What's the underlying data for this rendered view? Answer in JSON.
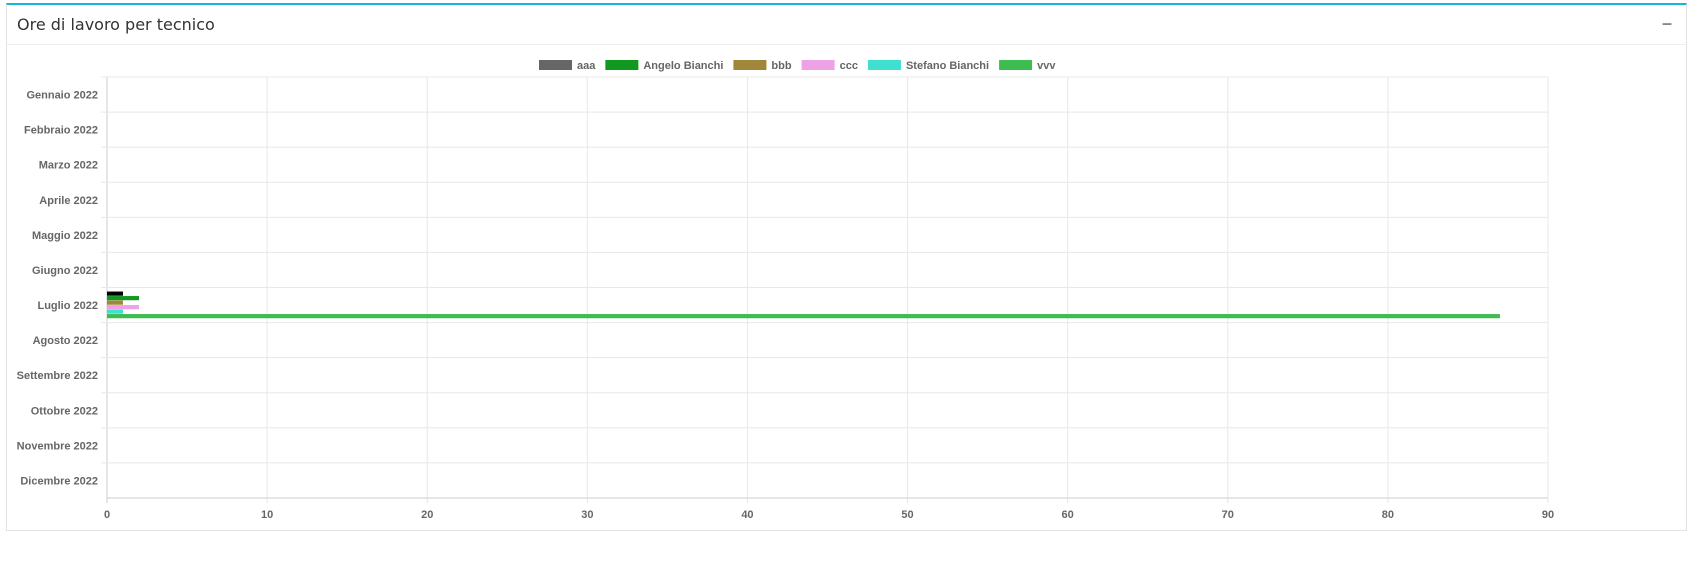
{
  "panel": {
    "title": "Ore di lavoro per tecnico",
    "collapse_icon": "minus-icon"
  },
  "chart_data": {
    "type": "bar",
    "orientation": "horizontal",
    "categories": [
      "Gennaio 2022",
      "Febbraio 2022",
      "Marzo 2022",
      "Aprile 2022",
      "Maggio 2022",
      "Giugno 2022",
      "Luglio 2022",
      "Agosto 2022",
      "Settembre 2022",
      "Ottobre 2022",
      "Novembre 2022",
      "Dicembre 2022"
    ],
    "series": [
      {
        "name": "aaa",
        "color": "#000000",
        "legend_color": "#666666",
        "values": [
          0,
          0,
          0,
          0,
          0,
          0,
          1,
          0,
          0,
          0,
          0,
          0
        ]
      },
      {
        "name": "Angelo Bianchi",
        "color": "#11991f",
        "values": [
          0,
          0,
          0,
          0,
          0,
          0,
          2,
          0,
          0,
          0,
          0,
          0
        ]
      },
      {
        "name": "bbb",
        "color": "#a0873a",
        "values": [
          0,
          0,
          0,
          0,
          0,
          0,
          1,
          0,
          0,
          0,
          0,
          0
        ]
      },
      {
        "name": "ccc",
        "color": "#eea1e6",
        "values": [
          0,
          0,
          0,
          0,
          0,
          0,
          2,
          0,
          0,
          0,
          0,
          0
        ]
      },
      {
        "name": "Stefano Bianchi",
        "color": "#40e0d0",
        "values": [
          0,
          0,
          0,
          0,
          0,
          0,
          1,
          0,
          0,
          0,
          0,
          0
        ]
      },
      {
        "name": "vvv",
        "color": "#3dbd4f",
        "values": [
          0,
          0,
          0,
          0,
          0,
          0,
          87,
          0,
          0,
          0,
          0,
          0
        ]
      }
    ],
    "xlim": [
      0,
      90
    ],
    "xticks": [
      0,
      10,
      20,
      30,
      40,
      50,
      60,
      70,
      80,
      90
    ],
    "grid": true,
    "legend": "top"
  }
}
